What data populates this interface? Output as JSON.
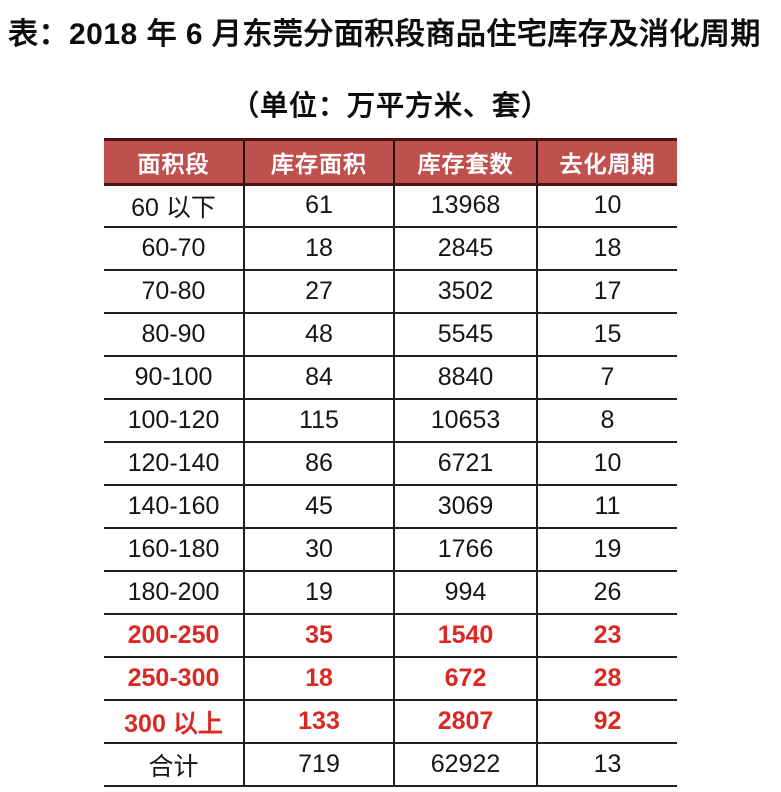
{
  "title": "表：2018 年 6 月东莞分面积段商品住宅库存及消化周期",
  "subtitle": "（单位：万平方米、套）",
  "colors": {
    "header_bg": "#c0504d",
    "header_text": "#ffffff",
    "header_border": "#4d1512",
    "highlight_text": "#dc2823",
    "body_text": "#161616",
    "grid_line": "#1f1f1f",
    "background": "#ffffff"
  },
  "chart_data": {
    "type": "table",
    "title": "表：2018 年 6 月东莞分面积段商品住宅库存及消化周期",
    "unit_note": "（单位：万平方米、套）",
    "columns": [
      "面积段",
      "库存面积",
      "库存套数",
      "去化周期"
    ],
    "rows": [
      {
        "cells": [
          "60 以下",
          "61",
          "13968",
          "10"
        ],
        "highlight": false
      },
      {
        "cells": [
          "60-70",
          "18",
          "2845",
          "18"
        ],
        "highlight": false
      },
      {
        "cells": [
          "70-80",
          "27",
          "3502",
          "17"
        ],
        "highlight": false
      },
      {
        "cells": [
          "80-90",
          "48",
          "5545",
          "15"
        ],
        "highlight": false
      },
      {
        "cells": [
          "90-100",
          "84",
          "8840",
          "7"
        ],
        "highlight": false
      },
      {
        "cells": [
          "100-120",
          "115",
          "10653",
          "8"
        ],
        "highlight": false
      },
      {
        "cells": [
          "120-140",
          "86",
          "6721",
          "10"
        ],
        "highlight": false
      },
      {
        "cells": [
          "140-160",
          "45",
          "3069",
          "11"
        ],
        "highlight": false
      },
      {
        "cells": [
          "160-180",
          "30",
          "1766",
          "19"
        ],
        "highlight": false
      },
      {
        "cells": [
          "180-200",
          "19",
          "994",
          "26"
        ],
        "highlight": false
      },
      {
        "cells": [
          "200-250",
          "35",
          "1540",
          "23"
        ],
        "highlight": true
      },
      {
        "cells": [
          "250-300",
          "18",
          "672",
          "28"
        ],
        "highlight": true
      },
      {
        "cells": [
          "300 以上",
          "133",
          "2807",
          "92"
        ],
        "highlight": true
      },
      {
        "cells": [
          "合计",
          "719",
          "62922",
          "13"
        ],
        "highlight": false
      }
    ]
  }
}
